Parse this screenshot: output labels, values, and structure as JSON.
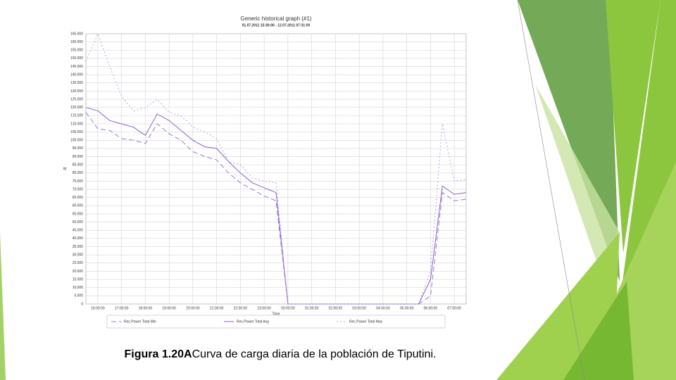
{
  "chart_data": {
    "type": "line",
    "title": "Generic historical graph (#1)",
    "subtitle": "01.07.2011 15:30:00 - 12.07.2011 07:31:00",
    "y_label": "W",
    "x_label": "Time",
    "categories": [
      null,
      "16:00:00",
      null,
      "17:00:00",
      null,
      "18:00:00",
      null,
      "19:00:00",
      null,
      "20:00:00",
      null,
      "21:00:00",
      null,
      "22:00:00",
      null,
      "23:00:00",
      null,
      "00:00:00",
      null,
      "01:00:00",
      null,
      "02:00:00",
      null,
      "03:00:00",
      null,
      "04:00:00",
      null,
      "05:00:00",
      null,
      "06:00:00",
      null,
      "07:00:00",
      null
    ],
    "series": [
      {
        "name": "Rec.Power Total Min",
        "color": "#9a7ad8",
        "dash": "7,4",
        "values": [
          117000,
          107000,
          106000,
          101000,
          100000,
          98000,
          110000,
          104000,
          100000,
          93000,
          90000,
          88000,
          80000,
          74000,
          70000,
          66000,
          63000,
          0,
          0,
          0,
          0,
          0,
          0,
          0,
          0,
          0,
          0,
          0,
          0,
          5000,
          68000,
          63000,
          64000
        ]
      },
      {
        "name": "Rec.Power Total Avg",
        "color": "#8a5fd0",
        "dash": "",
        "values": [
          120000,
          118000,
          112000,
          110000,
          108000,
          103000,
          116000,
          112000,
          106000,
          100000,
          96000,
          95000,
          87000,
          80000,
          74000,
          71000,
          68000,
          0,
          0,
          0,
          0,
          0,
          0,
          0,
          0,
          0,
          0,
          0,
          0,
          15000,
          72000,
          67000,
          68000
        ]
      },
      {
        "name": "Rec.Power Total Max",
        "color": "#b9a0e8",
        "dash": "2,3",
        "values": [
          148000,
          165000,
          145000,
          127000,
          118000,
          120000,
          125000,
          117000,
          115000,
          108000,
          105000,
          101000,
          87000,
          85000,
          77000,
          75000,
          74000,
          0,
          0,
          0,
          0,
          0,
          0,
          0,
          0,
          0,
          0,
          0,
          0,
          20000,
          110000,
          75000,
          76000
        ]
      }
    ],
    "ylim": [
      0,
      165000
    ],
    "yticks": [
      0,
      {
        "value": 5000,
        "label": "5.000"
      },
      {
        "value": 10000,
        "label": "10.000"
      },
      {
        "value": 15000,
        "label": "15.000"
      },
      {
        "value": 20000,
        "label": "20.000"
      },
      {
        "value": 25000,
        "label": "25.000"
      },
      {
        "value": 30000,
        "label": "30.000"
      },
      {
        "value": 35000,
        "label": "35.000"
      },
      {
        "value": 40000,
        "label": "40.000"
      },
      {
        "value": 45000,
        "label": "45.000"
      },
      {
        "value": 50000,
        "label": "50.000"
      },
      {
        "value": 55000,
        "label": "55.000"
      },
      {
        "value": 60000,
        "label": "60.000"
      },
      {
        "value": 65000,
        "label": "65.000"
      },
      {
        "value": 70000,
        "label": "70.000"
      },
      {
        "value": 75000,
        "label": "75.000"
      },
      {
        "value": 80000,
        "label": "80.000"
      },
      {
        "value": 85000,
        "label": "85.000"
      },
      {
        "value": 90000,
        "label": "90.000"
      },
      {
        "value": 95000,
        "label": "95.000"
      },
      {
        "value": 100000,
        "label": "100.000"
      },
      {
        "value": 105000,
        "label": "105.000"
      },
      {
        "value": 110000,
        "label": "110.000"
      },
      {
        "value": 115000,
        "label": "115.000"
      },
      {
        "value": 120000,
        "label": "120.000"
      },
      {
        "value": 125000,
        "label": "125.000"
      },
      {
        "value": 130000,
        "label": "130.000"
      },
      {
        "value": 135000,
        "label": "135.000"
      },
      {
        "value": 140000,
        "label": "140.000"
      },
      {
        "value": 145000,
        "label": "145.000"
      },
      {
        "value": 150000,
        "label": "150.000"
      },
      {
        "value": 155000,
        "label": "155.000"
      },
      {
        "value": 160000,
        "label": "160.000"
      },
      {
        "value": 165000,
        "label": "165.000"
      }
    ],
    "grid": true
  },
  "caption": {
    "label": "Figura 1.20A",
    "text": "Curva de carga diaria de la población de Tiputini."
  }
}
